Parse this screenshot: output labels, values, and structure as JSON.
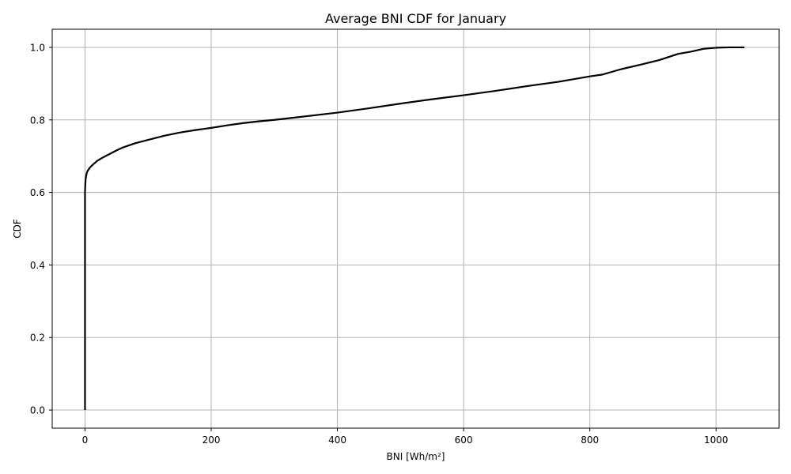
{
  "chart_data": {
    "type": "line",
    "title": "Average BNI CDF for January",
    "xlabel": "BNI [Wh/m²]",
    "ylabel": "CDF",
    "xlim": [
      -52,
      1100
    ],
    "ylim": [
      -0.05,
      1.05
    ],
    "xticks": [
      0,
      200,
      400,
      600,
      800,
      1000
    ],
    "yticks": [
      0.0,
      0.2,
      0.4,
      0.6,
      0.8,
      1.0
    ],
    "xtick_labels": [
      "0",
      "200",
      "400",
      "600",
      "800",
      "1000"
    ],
    "ytick_labels": [
      "0.0",
      "0.2",
      "0.4",
      "0.6",
      "0.8",
      "1.0"
    ],
    "grid": true,
    "line_color": "#000000",
    "grid_color": "#b0b0b0",
    "series": [
      {
        "x": [
          0,
          0,
          0,
          0.5,
          1,
          2,
          3,
          5,
          8,
          12,
          16,
          20,
          30,
          40,
          50,
          60,
          80,
          100,
          125,
          150,
          175,
          200,
          225,
          250,
          275,
          300,
          350,
          400,
          450,
          500,
          550,
          600,
          650,
          700,
          750,
          800,
          820,
          850,
          880,
          910,
          940,
          960,
          980,
          1000,
          1020,
          1045
        ],
        "y": [
          0.0,
          0.3,
          0.6,
          0.625,
          0.637,
          0.648,
          0.655,
          0.662,
          0.669,
          0.676,
          0.682,
          0.688,
          0.698,
          0.707,
          0.716,
          0.724,
          0.736,
          0.745,
          0.756,
          0.765,
          0.772,
          0.778,
          0.785,
          0.791,
          0.796,
          0.8,
          0.81,
          0.82,
          0.832,
          0.845,
          0.857,
          0.868,
          0.88,
          0.893,
          0.905,
          0.92,
          0.925,
          0.94,
          0.952,
          0.965,
          0.982,
          0.988,
          0.996,
          0.999,
          1.0,
          1.0
        ]
      }
    ]
  }
}
